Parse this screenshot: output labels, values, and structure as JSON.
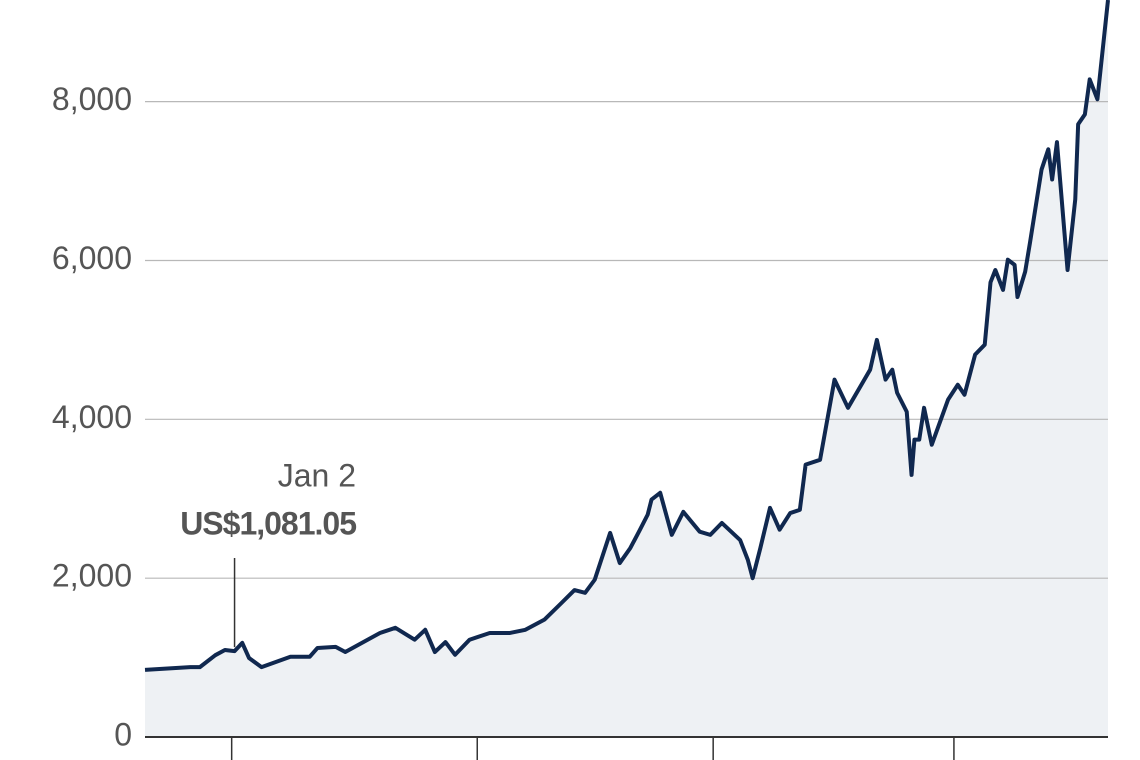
{
  "chart_data": {
    "type": "line",
    "x": [
      0,
      4.7,
      5.7,
      7.3,
      8.3,
      9.3,
      10.1,
      10.8,
      12.1,
      15.1,
      17.1,
      17.9,
      19.8,
      20.8,
      24.4,
      26,
      28,
      29.1,
      30.1,
      31.2,
      32.2,
      33.7,
      35.8,
      37.9,
      39.5,
      41.5,
      43.1,
      44.6,
      45.7,
      46.7,
      48.3,
      49.3,
      50.4,
      51.4,
      52.2,
      52.6,
      53.5,
      54.7,
      55.9,
      57.6,
      58.7,
      59.9,
      61.8,
      62.6,
      63.1,
      63.9,
      64.9,
      65.9,
      67,
      68,
      68.6,
      70.1,
      71.6,
      73,
      75.3,
      76,
      76.9,
      77.6,
      78.1,
      79.1,
      79.6,
      79.9,
      80.4,
      80.9,
      81.7,
      83.4,
      84.4,
      85.1,
      86.2,
      87.2,
      87.8,
      88.3,
      89.1,
      89.6,
      90.3,
      90.6,
      91.4,
      91.9,
      93.1,
      93.8,
      94.2,
      94.7,
      95.8,
      96.6,
      96.9,
      97.6,
      98.1,
      98.9,
      100
    ],
    "series": [
      {
        "color": "#10284f",
        "values": [
          845,
          880,
          880,
          1030,
          1095,
          1081.05,
          1185,
          995,
          880,
          1010,
          1010,
          1120,
          1135,
          1070,
          1310,
          1375,
          1225,
          1350,
          1070,
          1195,
          1035,
          1225,
          1310,
          1310,
          1350,
          1480,
          1670,
          1850,
          1815,
          1980,
          2570,
          2190,
          2380,
          2610,
          2800,
          2990,
          3075,
          2545,
          2835,
          2585,
          2545,
          2695,
          2480,
          2230,
          2000,
          2380,
          2885,
          2610,
          2820,
          2860,
          3430,
          3490,
          4500,
          4145,
          4625,
          5000,
          4500,
          4625,
          4335,
          4095,
          3300,
          3745,
          3745,
          4145,
          3680,
          4250,
          4435,
          4310,
          4815,
          4940,
          5725,
          5880,
          5630,
          6010,
          5945,
          5540,
          5860,
          6225,
          7145,
          7400,
          7020,
          7490,
          5880,
          6770,
          7715,
          7840,
          8280,
          8030,
          9280
        ]
      }
    ],
    "area_color": "#eef1f4",
    "xlim": [
      0,
      100
    ],
    "xticks": [
      9,
      34.5,
      59,
      84
    ],
    "ylim": [
      0,
      9280
    ],
    "yticks": [
      0,
      {
        "value": 2000,
        "label": "2,000"
      },
      {
        "value": 4000,
        "label": "4,000"
      },
      {
        "value": 6000,
        "label": "6,000"
      },
      {
        "value": 8000,
        "label": "8,000"
      }
    ],
    "grid": true,
    "annotation": {
      "label": "Jan 2",
      "value_label": "US$1,081.05",
      "x": 9.3,
      "value": 1081.05
    }
  }
}
